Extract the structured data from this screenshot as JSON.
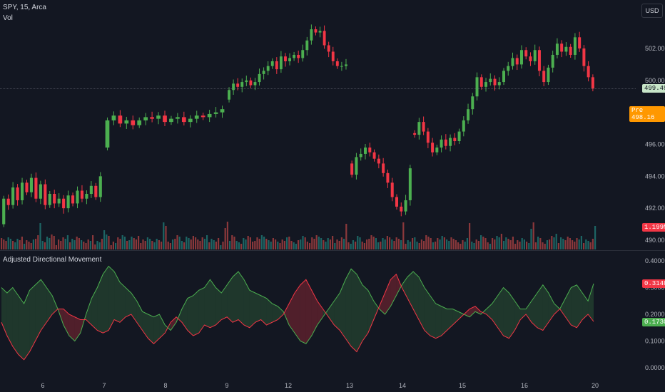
{
  "header": {
    "symbol": "SPY, 15, Arca",
    "volume_label": "Vol",
    "currency_button": "USD",
    "indicator_title": "Adjusted Directional Movement"
  },
  "price_tags": {
    "last": "499.49",
    "pre_label": "Pre",
    "pre": "498.16",
    "volume": "1.199M",
    "adm_upper": "0.3148",
    "adm_lower": "0.1730"
  },
  "colors": {
    "background": "#131722",
    "up": "#26a69a",
    "down": "#ef5350",
    "candle_up": "#4caf50",
    "candle_down": "#f23645",
    "adm_pos": "#4caf50",
    "adm_neg": "#f23645",
    "pre_tag": "#ff9800"
  },
  "chart_data": [
    {
      "type": "candlestick",
      "title": "SPY, 15, Arca",
      "x_ticks": [
        "6",
        "7",
        "8",
        "9",
        "12",
        "13",
        "14",
        "15",
        "16",
        "20"
      ],
      "y_ticks": [
        "502.00",
        "500.00",
        "498.00",
        "496.00",
        "494.00",
        "492.00",
        "490.00"
      ],
      "ylim": [
        489.7,
        503.5
      ],
      "last_price": 499.49,
      "premarket_price": 498.16,
      "segments": [
        {
          "day": "5",
          "path": [
            491.0,
            492.6,
            492.2,
            493.3,
            492.5,
            493.6,
            493.0,
            493.9,
            492.6,
            493.5,
            492.2,
            492.9,
            492.3,
            492.6,
            492.0,
            492.8,
            492.3,
            493.1,
            492.6,
            492.9,
            493.4,
            492.7,
            494.0
          ]
        },
        {
          "day": "6",
          "path": [
            495.8,
            497.5,
            497.8,
            497.3,
            497.5,
            497.2,
            497.5,
            497.7,
            497.6,
            497.8,
            497.4,
            497.6,
            497.7,
            497.4,
            497.6,
            497.8,
            497.7,
            497.9,
            498.0,
            498.2
          ]
        },
        {
          "day": "7",
          "path": [
            498.8,
            499.4,
            499.8,
            499.6,
            499.9,
            500.0,
            499.7,
            499.9,
            500.4,
            500.6,
            500.9,
            501.2,
            500.7,
            501.5,
            501.2,
            501.4,
            501.6,
            501.4,
            501.9,
            502.5,
            503.2,
            503.0,
            503.1,
            502.2,
            501.8,
            501.2,
            500.9,
            500.9,
            501.0
          ]
        },
        {
          "day": "8",
          "path": [
            494.8,
            494.1,
            495.2,
            495.4,
            495.8,
            495.5,
            495.1,
            494.8,
            494.2,
            493.6,
            492.7,
            492.1,
            491.8,
            492.5,
            494.5
          ]
        },
        {
          "day": "9",
          "path": [
            496.7,
            496.6,
            497.4,
            496.8,
            496.1,
            495.5,
            495.8,
            496.3,
            495.9,
            496.4,
            496.2,
            496.8,
            497.5,
            498.2,
            499.0,
            500.2,
            499.6,
            499.9,
            500.1,
            499.7,
            499.9,
            500.6,
            500.9,
            501.4,
            501.0,
            501.9,
            501.5,
            501.2,
            501.9,
            500.6,
            499.9,
            500.8,
            501.6,
            502.3,
            501.8,
            502.1,
            501.6,
            502.7,
            502.0,
            500.9,
            500.2,
            499.5
          ]
        }
      ]
    },
    {
      "type": "bar",
      "title": "Vol",
      "last_volume": "1.199M"
    },
    {
      "type": "area",
      "title": "Adjusted Directional Movement",
      "y_ticks": [
        "0.4000",
        "0.3000",
        "0.2000",
        "0.1000",
        "0.0000"
      ],
      "ylim": [
        -0.01,
        0.42
      ],
      "series": [
        {
          "name": "",
          "last": 0.3148,
          "values": [
            0.3,
            0.28,
            0.3,
            0.27,
            0.24,
            0.29,
            0.31,
            0.33,
            0.3,
            0.27,
            0.22,
            0.16,
            0.12,
            0.1,
            0.13,
            0.2,
            0.26,
            0.3,
            0.35,
            0.38,
            0.36,
            0.32,
            0.3,
            0.28,
            0.25,
            0.21,
            0.2,
            0.19,
            0.2,
            0.16,
            0.14,
            0.17,
            0.22,
            0.26,
            0.27,
            0.29,
            0.3,
            0.33,
            0.3,
            0.28,
            0.31,
            0.34,
            0.36,
            0.33,
            0.29,
            0.28,
            0.27,
            0.26,
            0.24,
            0.23,
            0.21,
            0.16,
            0.13,
            0.1,
            0.09,
            0.12,
            0.16,
            0.19,
            0.22,
            0.25,
            0.28,
            0.33,
            0.37,
            0.35,
            0.31,
            0.29,
            0.25,
            0.22,
            0.2,
            0.23,
            0.27,
            0.31,
            0.34,
            0.36,
            0.34,
            0.3,
            0.27,
            0.24,
            0.23,
            0.22,
            0.22,
            0.21,
            0.2,
            0.19,
            0.21,
            0.2,
            0.22,
            0.24,
            0.27,
            0.3,
            0.28,
            0.25,
            0.22,
            0.22,
            0.25,
            0.28,
            0.31,
            0.28,
            0.24,
            0.22,
            0.26,
            0.3,
            0.31,
            0.28,
            0.25,
            0.3148
          ]
        },
        {
          "name": "",
          "last": 0.173,
          "values": [
            0.17,
            0.12,
            0.08,
            0.05,
            0.03,
            0.06,
            0.1,
            0.14,
            0.17,
            0.2,
            0.22,
            0.22,
            0.2,
            0.19,
            0.18,
            0.18,
            0.16,
            0.14,
            0.13,
            0.14,
            0.18,
            0.17,
            0.19,
            0.2,
            0.17,
            0.14,
            0.11,
            0.09,
            0.11,
            0.13,
            0.17,
            0.19,
            0.17,
            0.14,
            0.12,
            0.13,
            0.16,
            0.15,
            0.16,
            0.18,
            0.19,
            0.17,
            0.18,
            0.16,
            0.15,
            0.17,
            0.18,
            0.16,
            0.17,
            0.18,
            0.2,
            0.24,
            0.28,
            0.31,
            0.33,
            0.29,
            0.25,
            0.22,
            0.19,
            0.16,
            0.14,
            0.11,
            0.08,
            0.06,
            0.1,
            0.13,
            0.18,
            0.23,
            0.28,
            0.33,
            0.35,
            0.3,
            0.26,
            0.22,
            0.18,
            0.14,
            0.12,
            0.11,
            0.12,
            0.14,
            0.16,
            0.18,
            0.2,
            0.22,
            0.23,
            0.21,
            0.2,
            0.18,
            0.15,
            0.12,
            0.11,
            0.14,
            0.18,
            0.2,
            0.17,
            0.15,
            0.14,
            0.17,
            0.2,
            0.22,
            0.19,
            0.16,
            0.15,
            0.18,
            0.2,
            0.173
          ]
        }
      ]
    }
  ]
}
